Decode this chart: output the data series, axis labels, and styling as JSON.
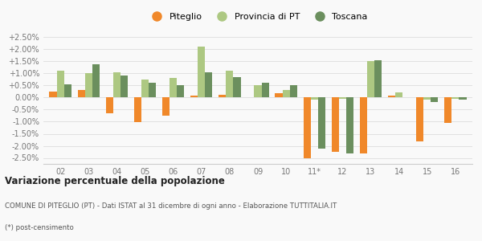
{
  "years": [
    "02",
    "03",
    "04",
    "05",
    "06",
    "07",
    "08",
    "09",
    "10",
    "11*",
    "12",
    "13",
    "14",
    "15",
    "16"
  ],
  "piteglio": [
    0.25,
    0.3,
    -0.65,
    -1.02,
    -0.75,
    0.08,
    0.1,
    0.0,
    0.18,
    -2.5,
    -2.25,
    -2.3,
    0.07,
    -1.8,
    -1.05
  ],
  "provincia_pt": [
    1.1,
    1.0,
    1.05,
    0.75,
    0.8,
    2.1,
    1.1,
    0.5,
    0.3,
    -0.1,
    -0.05,
    1.5,
    0.22,
    -0.1,
    -0.05
  ],
  "toscana": [
    0.55,
    1.38,
    0.9,
    0.6,
    0.5,
    1.05,
    0.85,
    0.6,
    0.52,
    -2.12,
    -2.3,
    1.55,
    0.0,
    -0.2,
    -0.1
  ],
  "color_piteglio": "#f0882a",
  "color_provincia": "#adc882",
  "color_toscana": "#6b8f5e",
  "background_color": "#f9f9f9",
  "ylim": [
    -2.75,
    2.75
  ],
  "yticks": [
    -2.5,
    -2.0,
    -1.5,
    -1.0,
    -0.5,
    0.0,
    0.5,
    1.0,
    1.5,
    2.0,
    2.5
  ],
  "title": "Variazione percentuale della popolazione",
  "subtitle": "COMUNE DI PITEGLIO (PT) - Dati ISTAT al 31 dicembre di ogni anno - Elaborazione TUTTITALIA.IT",
  "footnote": "(*) post-censimento",
  "bar_width": 0.26,
  "legend_labels": [
    "Piteglio",
    "Provincia di PT",
    "Toscana"
  ]
}
